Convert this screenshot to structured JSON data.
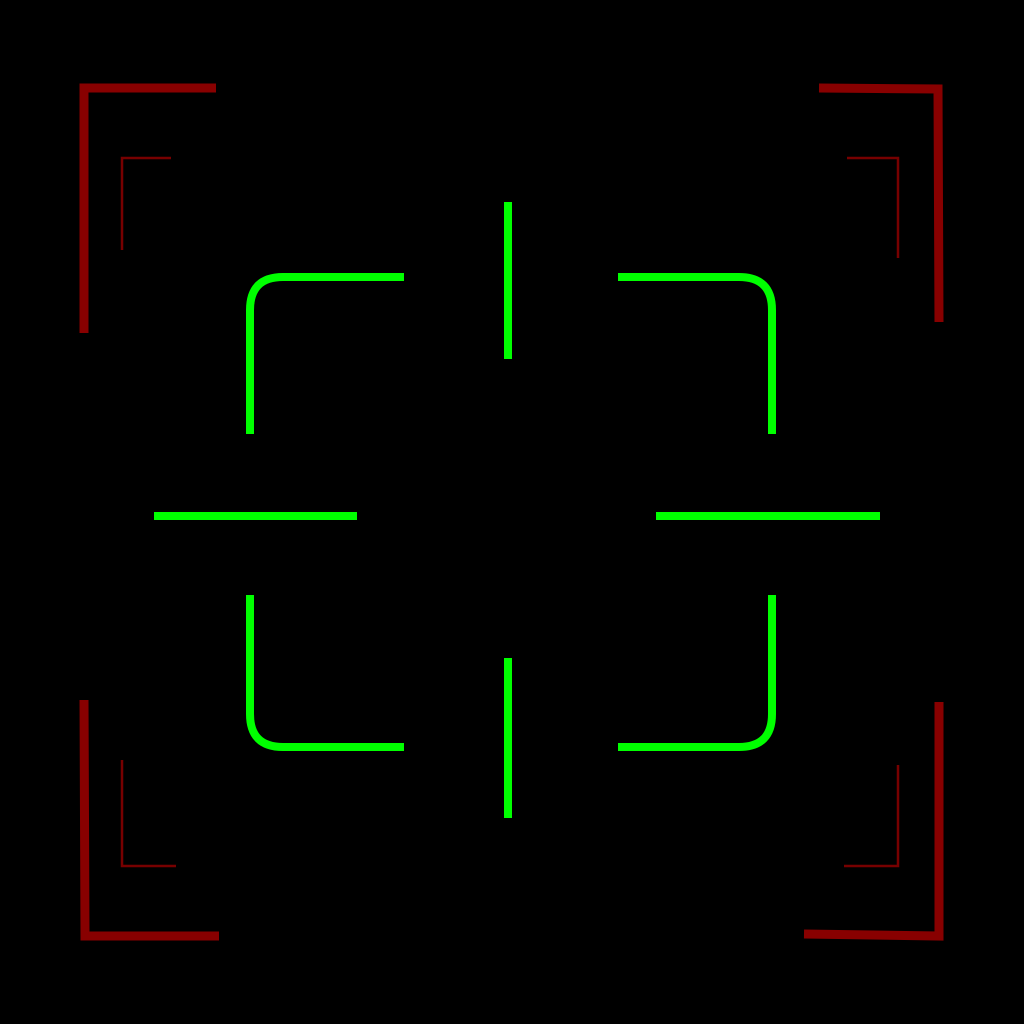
{
  "overlay": {
    "background_color": "#000000",
    "reticle_color": "#00ff00",
    "outer_frame_color": "#880000",
    "inner_frame_color": "#770000",
    "icons": {
      "reticle": "crosshair-reticle-icon",
      "frame": "viewfinder-corner-bracket-icon"
    }
  }
}
